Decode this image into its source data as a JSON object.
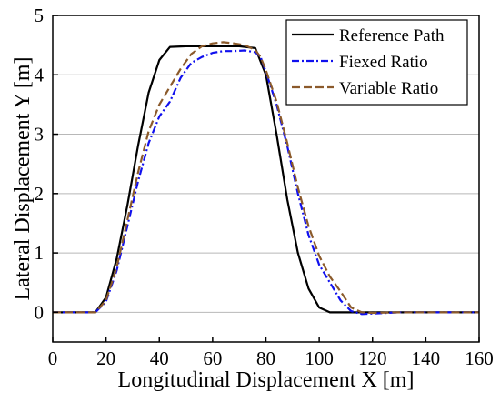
{
  "chart_data": {
    "type": "line",
    "xlabel": "Longitudinal Displacement X [m]",
    "ylabel": "Lateral Displacement Y [m]",
    "xlim": [
      0,
      160
    ],
    "ylim": [
      -0.5,
      5
    ],
    "xticks": [
      0,
      20,
      40,
      60,
      80,
      100,
      120,
      140,
      160
    ],
    "yticks": [
      0,
      1,
      2,
      3,
      4,
      5
    ],
    "grid": "horizontal",
    "legend_position": "top-right",
    "series": [
      {
        "name": "Reference Path",
        "color": "#000000",
        "dash": "solid",
        "x": [
          0,
          10,
          16,
          20,
          24,
          28,
          32,
          36,
          40,
          44,
          50,
          60,
          70,
          76,
          80,
          84,
          88,
          92,
          96,
          100,
          104,
          110,
          120,
          130,
          140,
          150,
          160
        ],
        "y": [
          0,
          0,
          0,
          0.25,
          0.9,
          1.8,
          2.8,
          3.7,
          4.25,
          4.47,
          4.48,
          4.48,
          4.48,
          4.45,
          4.0,
          3.0,
          1.9,
          1.0,
          0.4,
          0.08,
          0,
          0,
          0,
          0,
          0,
          0,
          0
        ]
      },
      {
        "name": "Fiexed Ratio",
        "color": "#1010ee",
        "dash": "dashdot",
        "x": [
          0,
          10,
          16,
          20,
          24,
          28,
          32,
          36,
          40,
          44,
          48,
          52,
          56,
          60,
          64,
          68,
          72,
          76,
          78,
          80,
          84,
          88,
          92,
          96,
          100,
          104,
          108,
          112,
          116,
          120,
          130,
          140,
          150,
          160
        ],
        "y": [
          0,
          0,
          0,
          0.18,
          0.7,
          1.45,
          2.2,
          2.85,
          3.3,
          3.55,
          3.95,
          4.2,
          4.3,
          4.37,
          4.4,
          4.4,
          4.41,
          4.38,
          4.3,
          4.05,
          3.5,
          2.8,
          2.0,
          1.3,
          0.8,
          0.5,
          0.2,
          0.02,
          -0.03,
          -0.02,
          0,
          0,
          0,
          0
        ]
      },
      {
        "name": "Variable Ratio",
        "color": "#8b5a2b",
        "dash": "dash",
        "x": [
          0,
          10,
          16,
          20,
          24,
          28,
          32,
          36,
          40,
          44,
          48,
          52,
          56,
          60,
          64,
          68,
          72,
          76,
          78,
          80,
          84,
          88,
          92,
          96,
          100,
          104,
          108,
          112,
          116,
          120,
          130,
          140,
          150,
          160
        ],
        "y": [
          0,
          0,
          0,
          0.2,
          0.75,
          1.55,
          2.35,
          3.05,
          3.5,
          3.8,
          4.1,
          4.35,
          4.48,
          4.53,
          4.55,
          4.53,
          4.5,
          4.42,
          4.3,
          4.08,
          3.55,
          2.85,
          2.1,
          1.45,
          0.95,
          0.6,
          0.35,
          0.08,
          0.0,
          -0.01,
          0,
          0,
          0,
          0
        ]
      }
    ]
  }
}
